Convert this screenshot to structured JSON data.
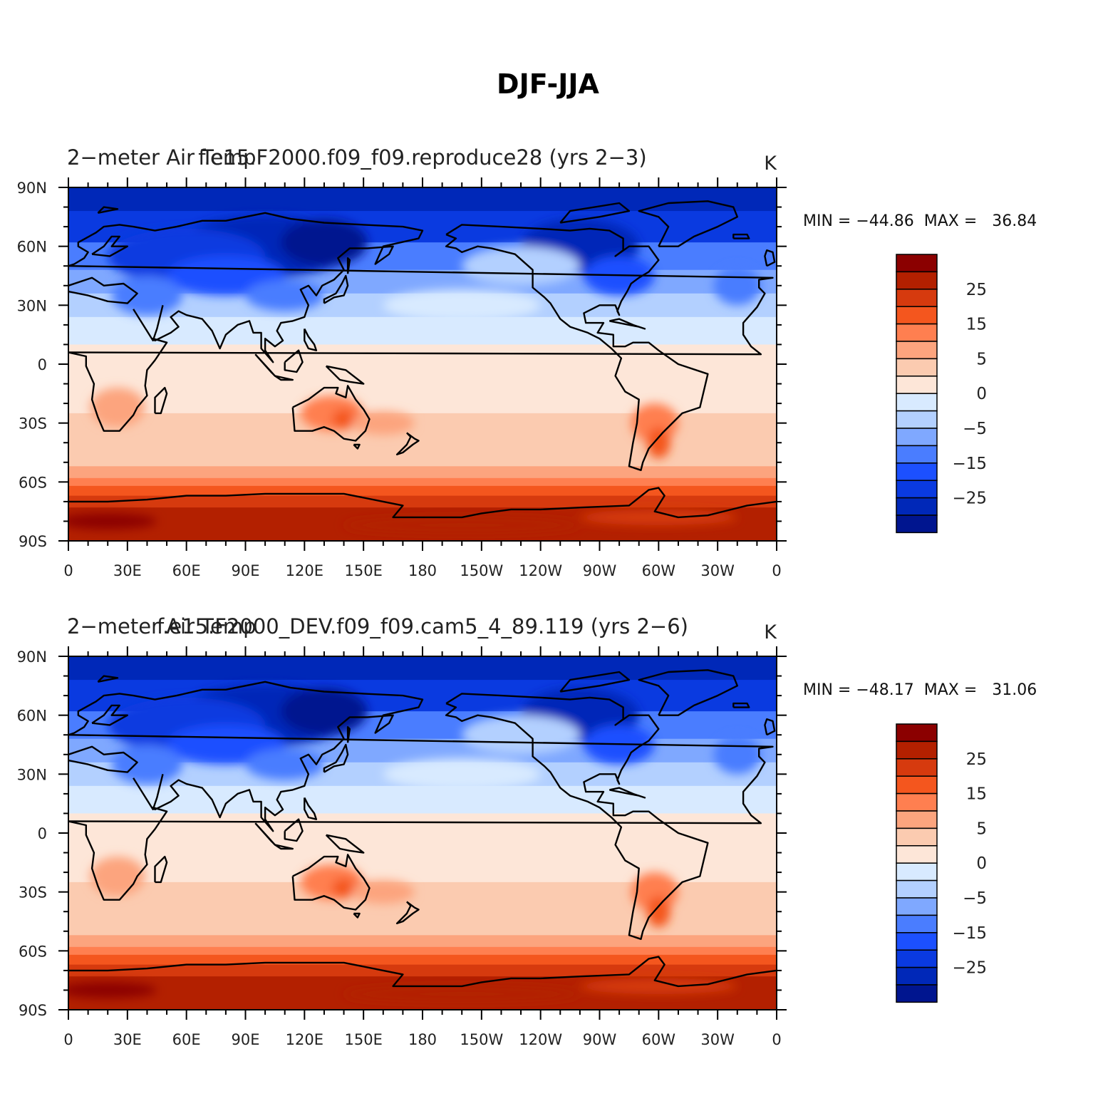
{
  "figure_title": "DJF-JJA",
  "panels": [
    {
      "title_left": "2−meter Air Temp",
      "title_center": "f.e15.F2000.f09_f09.reproduce28 (yrs 2−3)",
      "units": "K",
      "stats": "MIN = −44.86  MAX =   36.84"
    },
    {
      "title_left": "2−meter Air Temp",
      "title_center": "f.e15.F2000_DEV.f09_f09.cam5_4_89.119 (yrs 2−6)",
      "units": "K",
      "stats": "MIN = −48.17  MAX =   31.06"
    }
  ],
  "chart_data": {
    "type": "heatmap",
    "variable": "2−meter Air Temp",
    "units": "K",
    "projection": "cylindrical equidistant",
    "lon_range": [
      0,
      360
    ],
    "lat_range": [
      -90,
      90
    ],
    "x_ticks": [
      "0",
      "30E",
      "60E",
      "90E",
      "120E",
      "150E",
      "180",
      "150W",
      "120W",
      "90W",
      "60W",
      "30W",
      "0"
    ],
    "y_ticks": [
      "90N",
      "60N",
      "30N",
      "0",
      "30S",
      "60S",
      "90S"
    ],
    "colorbar": {
      "labels": [
        "25",
        "15",
        "5",
        "0",
        "−5",
        "−15",
        "−25"
      ],
      "colors": [
        "#8b0000",
        "#b32000",
        "#d63a0e",
        "#f4561e",
        "#ff7f50",
        "#fca47e",
        "#fbcbb0",
        "#fde6d8",
        "#d8eaff",
        "#b3d0ff",
        "#7fa8ff",
        "#4a7dff",
        "#1c50ff",
        "#0a3ae0",
        "#0028b8",
        "#00158f"
      ]
    },
    "panels": [
      {
        "name": "f.e15.F2000.f09_f09.reproduce28 (yrs 2−3)",
        "min": -44.86,
        "max": 36.84
      },
      {
        "name": "f.e15.F2000_DEV.f09_f09.cam5_4_89.119 (yrs 2−6)",
        "min": -48.17,
        "max": 31.06
      }
    ]
  }
}
